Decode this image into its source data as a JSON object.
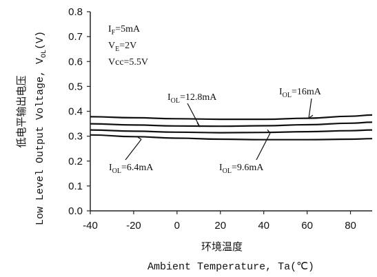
{
  "chart_data": {
    "type": "line",
    "xlabel_cn": "环境温度",
    "xlabel": "Ambient Temperature, Ta(℃)",
    "ylabel_cn": "低电平输出电压",
    "ylabel": "Low Level Output Voltage, V",
    "ylabel_sub": "OL",
    "ylabel_tail": "(V)",
    "xlim": [
      -40,
      90
    ],
    "ylim": [
      0.0,
      0.8
    ],
    "x_ticks": [
      -40,
      -20,
      0,
      20,
      40,
      60,
      80
    ],
    "x_tick_labels": [
      "-40",
      "-20",
      "0",
      "20",
      "40",
      "60",
      "80"
    ],
    "y_ticks": [
      0.0,
      0.1,
      0.2,
      0.3,
      0.4,
      0.5,
      0.6,
      0.7,
      0.8
    ],
    "y_tick_labels": [
      "0.0",
      "0.1",
      "0.2",
      "0.3",
      "0.4",
      "0.5",
      "0.6",
      "0.7",
      "0.8"
    ],
    "grid": false,
    "conditions": [
      {
        "main": "I",
        "sub": "F",
        "rest": "=5mA"
      },
      {
        "main": "V",
        "sub": "E",
        "rest": "=2V"
      },
      {
        "main": "Vcc=5.5V",
        "sub": "",
        "rest": ""
      }
    ],
    "series": [
      {
        "name": "IOL=16mA",
        "label_main": "I",
        "label_sub": "OL",
        "label_rest": "=16mA",
        "x": [
          -40,
          -20,
          0,
          20,
          40,
          60,
          80,
          90
        ],
        "y": [
          0.378,
          0.374,
          0.37,
          0.368,
          0.368,
          0.372,
          0.38,
          0.385
        ]
      },
      {
        "name": "IOL=12.8mA",
        "label_main": "I",
        "label_sub": "OL",
        "label_rest": "=12.8mA",
        "x": [
          -40,
          -20,
          0,
          20,
          40,
          60,
          80,
          90
        ],
        "y": [
          0.35,
          0.345,
          0.341,
          0.34,
          0.342,
          0.346,
          0.352,
          0.356
        ]
      },
      {
        "name": "IOL=9.6mA",
        "label_main": "I",
        "label_sub": "OL",
        "label_rest": "=9.6mA",
        "x": [
          -40,
          -20,
          0,
          20,
          40,
          60,
          80,
          90
        ],
        "y": [
          0.325,
          0.32,
          0.316,
          0.314,
          0.315,
          0.318,
          0.322,
          0.325
        ]
      },
      {
        "name": "IOL=6.4mA",
        "label_main": "I",
        "label_sub": "OL",
        "label_rest": "=6.4mA",
        "x": [
          -40,
          -20,
          0,
          20,
          40,
          60,
          80,
          90
        ],
        "y": [
          0.305,
          0.298,
          0.292,
          0.288,
          0.286,
          0.286,
          0.288,
          0.29
        ]
      }
    ]
  }
}
